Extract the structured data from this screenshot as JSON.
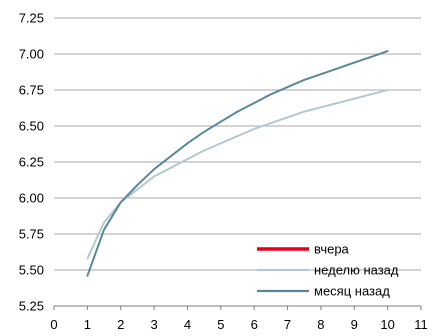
{
  "chart_data": {
    "type": "line",
    "title": "",
    "xlabel": "",
    "ylabel": "",
    "xlim": [
      0,
      11
    ],
    "ylim": [
      5.25,
      7.25
    ],
    "x_ticks": [
      "0",
      "1",
      "2",
      "3",
      "4",
      "5",
      "6",
      "7",
      "8",
      "9",
      "10",
      "11"
    ],
    "y_ticks": [
      "5.25",
      "5.50",
      "5.75",
      "6.00",
      "6.25",
      "6.50",
      "6.75",
      "7.00",
      "7.25"
    ],
    "grid": "horizontal",
    "legend_position": "bottom-right",
    "series": [
      {
        "name": "вчера",
        "color": "#e3001b",
        "x": [],
        "y": []
      },
      {
        "name": "неделю назад",
        "color": "#b4c8d2",
        "x": [
          1,
          1.5,
          2,
          2.5,
          3,
          3.5,
          4,
          4.5,
          5,
          5.5,
          6,
          6.5,
          7,
          7.5,
          8,
          8.5,
          9,
          9.5,
          10
        ],
        "y": [
          5.58,
          5.83,
          5.97,
          6.06,
          6.15,
          6.21,
          6.27,
          6.33,
          6.38,
          6.43,
          6.48,
          6.52,
          6.56,
          6.6,
          6.63,
          6.66,
          6.69,
          6.72,
          6.75
        ]
      },
      {
        "name": "месяц назад",
        "color": "#5a8896",
        "x": [
          1,
          1.5,
          2,
          2.5,
          3,
          3.5,
          4,
          4.5,
          5,
          5.5,
          6,
          6.5,
          7,
          7.5,
          8,
          8.5,
          9,
          9.5,
          10
        ],
        "y": [
          5.46,
          5.78,
          5.97,
          6.09,
          6.2,
          6.29,
          6.38,
          6.46,
          6.53,
          6.6,
          6.66,
          6.72,
          6.77,
          6.82,
          6.86,
          6.9,
          6.94,
          6.98,
          7.02
        ]
      }
    ]
  }
}
